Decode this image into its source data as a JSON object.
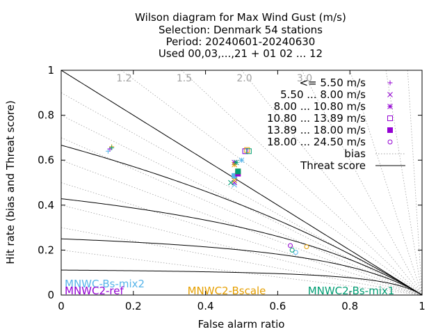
{
  "chart_data": {
    "type": "scatter",
    "title_lines": [
      "Wilson diagram  for Max Wind Gust (m/s)",
      "Selection: Denmark     54 stations",
      "Period: 20240601-20240630",
      "Used 00,03,...,21 + 01 02 ... 12"
    ],
    "xlabel": "False alarm ratio",
    "ylabel": "Hit rate (bias and Threat score)",
    "xlim": [
      0,
      1
    ],
    "ylim": [
      0,
      1
    ],
    "x_ticks": [
      "0",
      "0.2",
      "0.4",
      "0.6",
      "0.8",
      "1"
    ],
    "y_ticks": [
      "0",
      "0.2",
      "0.4",
      "0.6",
      "0.8",
      "1"
    ],
    "bias_values": [
      1.2,
      1.5,
      2.0,
      3.0
    ],
    "bias_labels": [
      "1.2",
      "1.5",
      "2.0",
      "3.0"
    ],
    "threat_score_values": [
      0.1,
      0.2,
      0.3,
      0.4,
      0.5,
      0.6,
      0.7,
      0.8,
      0.9
    ],
    "legend": {
      "placement": "top-right",
      "class_entries": [
        {
          "label": "<= 5.50 m/s",
          "marker": "plus"
        },
        {
          "label": "5.50 ... 8.00 m/s",
          "marker": "cross"
        },
        {
          "label": "8.00 ... 10.80 m/s",
          "marker": "star"
        },
        {
          "label": "10.80 ... 13.89 m/s",
          "marker": "box"
        },
        {
          "label": "13.89 ... 18.00 m/s",
          "marker": "filled-box"
        },
        {
          "label": "18.00 ... 24.50 m/s",
          "marker": "circle"
        }
      ],
      "bias_label": "bias",
      "threat_label": "Threat score"
    },
    "series": [
      {
        "name": "MNWC-Bs-mix2",
        "color": "#56b4e9",
        "points": [
          {
            "class": 0,
            "x": 0.13,
            "y": 0.64
          },
          {
            "class": 1,
            "x": 0.48,
            "y": 0.49
          },
          {
            "class": 2,
            "x": 0.5,
            "y": 0.6
          },
          {
            "class": 3,
            "x": 0.51,
            "y": 0.64
          },
          {
            "class": 4,
            "x": 0.48,
            "y": 0.53
          },
          {
            "class": 5,
            "x": 0.65,
            "y": 0.19
          }
        ]
      },
      {
        "name": "MNWC2-ref",
        "color": "#9400d3",
        "points": [
          {
            "class": 0,
            "x": 0.135,
            "y": 0.65
          },
          {
            "class": 1,
            "x": 0.48,
            "y": 0.5
          },
          {
            "class": 2,
            "x": 0.48,
            "y": 0.59
          },
          {
            "class": 3,
            "x": 0.51,
            "y": 0.64
          },
          {
            "class": 4,
            "x": 0.49,
            "y": 0.54
          },
          {
            "class": 5,
            "x": 0.635,
            "y": 0.22
          }
        ]
      },
      {
        "name": "MNWC2-Bscale",
        "color": "#e69f00",
        "points": [
          {
            "class": 0,
            "x": 0.14,
            "y": 0.66
          },
          {
            "class": 1,
            "x": 0.48,
            "y": 0.51
          },
          {
            "class": 2,
            "x": 0.48,
            "y": 0.58
          },
          {
            "class": 3,
            "x": 0.515,
            "y": 0.645
          },
          {
            "class": 4,
            "x": 0.49,
            "y": 0.55
          },
          {
            "class": 5,
            "x": 0.68,
            "y": 0.215
          }
        ]
      },
      {
        "name": "MNWC2-Bs-mix1",
        "color": "#009e73",
        "points": [
          {
            "class": 0,
            "x": 0.14,
            "y": 0.655
          },
          {
            "class": 1,
            "x": 0.47,
            "y": 0.5
          },
          {
            "class": 2,
            "x": 0.485,
            "y": 0.59
          },
          {
            "class": 3,
            "x": 0.52,
            "y": 0.64
          },
          {
            "class": 4,
            "x": 0.49,
            "y": 0.55
          },
          {
            "class": 5,
            "x": 0.64,
            "y": 0.2
          }
        ]
      }
    ]
  }
}
